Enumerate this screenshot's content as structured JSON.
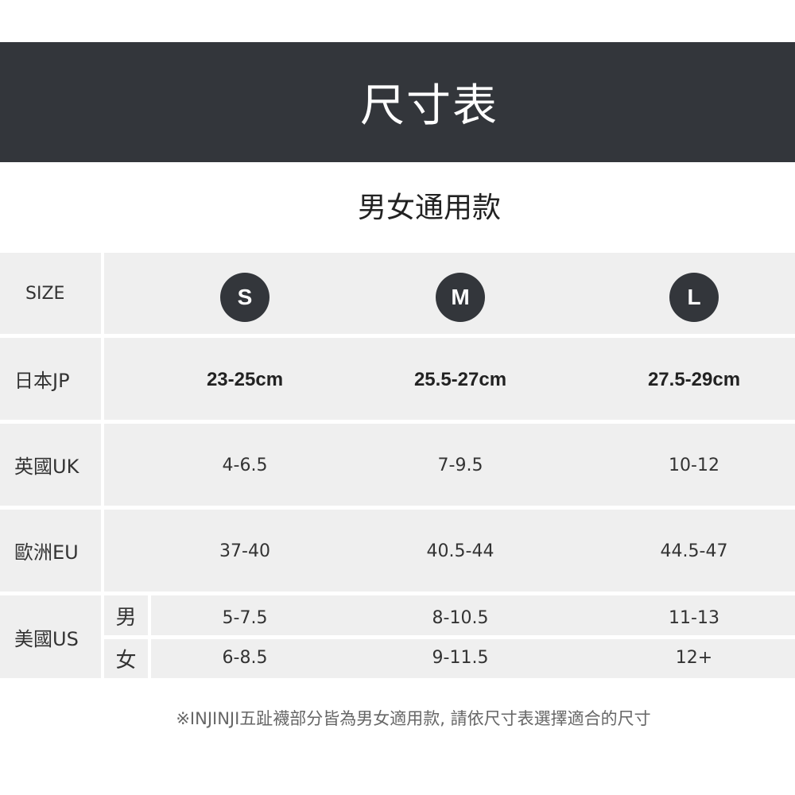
{
  "header": {
    "title": "尺寸表"
  },
  "subtitle": "男女通用款",
  "table": {
    "size_label": "SIZE",
    "sizes": [
      "S",
      "M",
      "L"
    ],
    "rows": [
      {
        "label": "日本JP",
        "values": [
          "23-25cm",
          "25.5-27cm",
          "27.5-29cm"
        ]
      },
      {
        "label": "英國UK",
        "values": [
          "4-6.5",
          "7-9.5",
          "10-12"
        ]
      },
      {
        "label": "歐洲EU",
        "values": [
          "37-40",
          "40.5-44",
          "44.5-47"
        ]
      }
    ],
    "us": {
      "label": "美國US",
      "men_label": "男",
      "women_label": "女",
      "men": [
        "5-7.5",
        "8-10.5",
        "11-13"
      ],
      "women": [
        "6-8.5",
        "9-11.5",
        "12+"
      ]
    }
  },
  "footnote": "※INJINJI五趾襪部分皆為男女適用款, 請依尺寸表選擇適合的尺寸",
  "colors": {
    "header_bg": "#33363b",
    "cell_bg": "#efefef"
  }
}
